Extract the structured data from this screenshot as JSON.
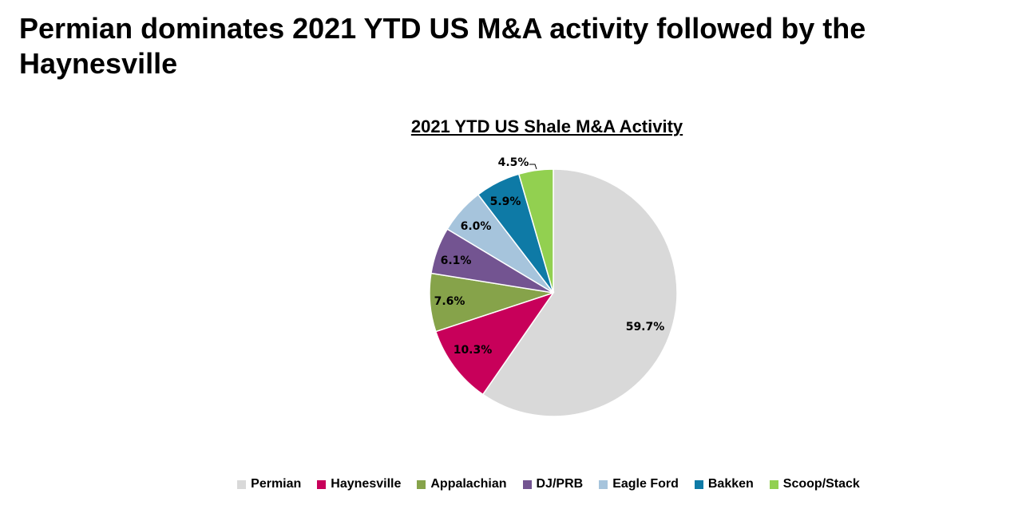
{
  "slide": {
    "title": "Permian dominates 2021 YTD US M&A activity followed by the Haynesville"
  },
  "chart_data": {
    "type": "pie",
    "title": "2021 YTD US Shale M&A Activity",
    "unit": "%",
    "legend_position": "bottom",
    "slices": [
      {
        "name": "Permian",
        "value": 59.7,
        "label": "59.7%",
        "color": "#d9d9d9"
      },
      {
        "name": "Haynesville",
        "value": 10.3,
        "label": "10.3%",
        "color": "#c8005a"
      },
      {
        "name": "Appalachian",
        "value": 7.6,
        "label": "7.6%",
        "color": "#86a34a"
      },
      {
        "name": "DJ/PRB",
        "value": 6.1,
        "label": "6.1%",
        "color": "#735491"
      },
      {
        "name": "Eagle Ford",
        "value": 6.0,
        "label": "6.0%",
        "color": "#a6c4dc"
      },
      {
        "name": "Bakken",
        "value": 5.9,
        "label": "5.9%",
        "color": "#0e7aa6"
      },
      {
        "name": "Scoop/Stack",
        "value": 4.5,
        "label": "4.5%",
        "color": "#92d050"
      }
    ]
  }
}
